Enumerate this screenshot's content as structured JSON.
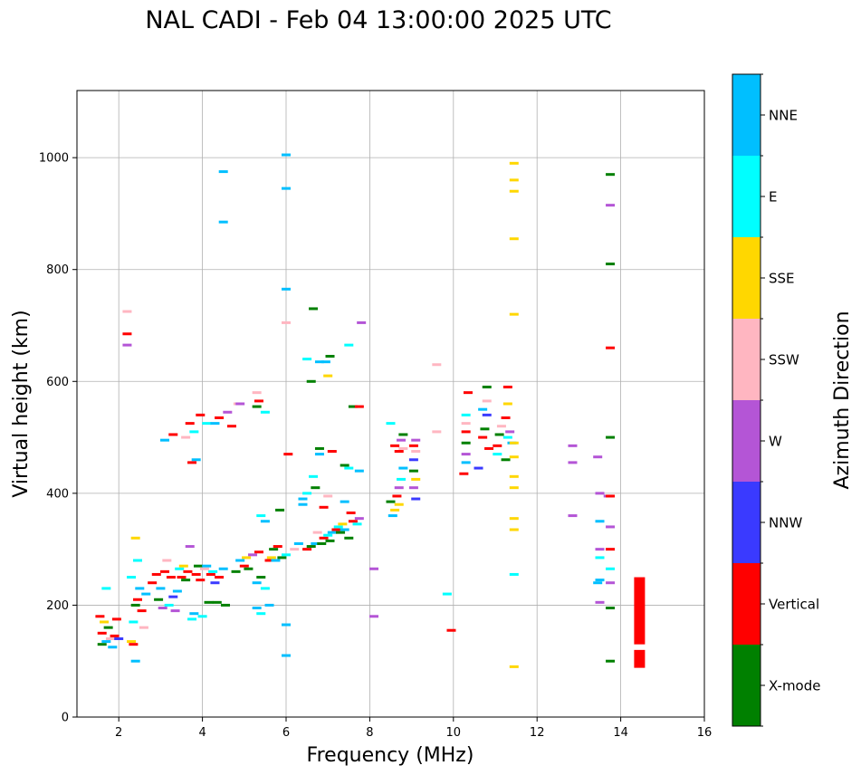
{
  "chart_data": {
    "type": "scatter",
    "title": "NAL CADI - Feb 04 13:00:00 2025 UTC",
    "xlabel": "Frequency (MHz)",
    "ylabel": "Virtual height (km)",
    "xlim": [
      1,
      16
    ],
    "ylim": [
      0,
      1120
    ],
    "xticks": [
      2,
      4,
      6,
      8,
      10,
      12,
      14,
      16
    ],
    "yticks": [
      0,
      200,
      400,
      600,
      800,
      1000
    ],
    "grid": true,
    "colorbar": {
      "title": "Azimuth Direction",
      "categories": [
        {
          "label": "X-mode",
          "color": "#008000"
        },
        {
          "label": "Vertical",
          "color": "#ff0000"
        },
        {
          "label": "NNW",
          "color": "#3a3aff"
        },
        {
          "label": "W",
          "color": "#b455d6"
        },
        {
          "label": "SSW",
          "color": "#ffb6c1"
        },
        {
          "label": "SSE",
          "color": "#ffd700"
        },
        {
          "label": "E",
          "color": "#00ffff"
        },
        {
          "label": "NNE",
          "color": "#00bfff"
        }
      ]
    },
    "points": [
      [
        "X-mode",
        1.6,
        130
      ],
      [
        "Vertical",
        1.6,
        150
      ],
      [
        "SSE",
        1.65,
        170
      ],
      [
        "NNE",
        1.7,
        135
      ],
      [
        "X-mode",
        1.75,
        160
      ],
      [
        "Vertical",
        1.55,
        180
      ],
      [
        "SSW",
        1.8,
        140
      ],
      [
        "NNE",
        1.85,
        125
      ],
      [
        "Vertical",
        1.9,
        145
      ],
      [
        "E",
        1.7,
        230
      ],
      [
        "Vertical",
        1.95,
        175
      ],
      [
        "NNW",
        2.0,
        140
      ],
      [
        "SSE",
        2.3,
        135
      ],
      [
        "Vertical",
        2.35,
        130
      ],
      [
        "NNE",
        2.4,
        100
      ],
      [
        "E",
        2.35,
        170
      ],
      [
        "X-mode",
        2.4,
        200
      ],
      [
        "Vertical",
        2.45,
        210
      ],
      [
        "NNE",
        2.5,
        230
      ],
      [
        "E",
        2.3,
        250
      ],
      [
        "SSE",
        2.4,
        320
      ],
      [
        "E",
        2.45,
        280
      ],
      [
        "Vertical",
        2.55,
        190
      ],
      [
        "SSW",
        2.6,
        160
      ],
      [
        "NNE",
        2.65,
        220
      ],
      [
        "Vertical",
        2.2,
        685
      ],
      [
        "W",
        2.2,
        665
      ],
      [
        "SSW",
        2.2,
        725
      ],
      [
        "Vertical",
        2.8,
        240
      ],
      [
        "Vertical",
        2.9,
        255
      ],
      [
        "X-mode",
        2.95,
        210
      ],
      [
        "NNE",
        3.0,
        230
      ],
      [
        "W",
        3.05,
        195
      ],
      [
        "Vertical",
        3.1,
        260
      ],
      [
        "SSW",
        3.15,
        280
      ],
      [
        "E",
        3.2,
        200
      ],
      [
        "Vertical",
        3.25,
        250
      ],
      [
        "NNW",
        3.3,
        215
      ],
      [
        "W",
        3.35,
        190
      ],
      [
        "NNE",
        3.4,
        225
      ],
      [
        "E",
        3.45,
        265
      ],
      [
        "Vertical",
        3.5,
        250
      ],
      [
        "SSE",
        3.55,
        270
      ],
      [
        "X-mode",
        3.6,
        245
      ],
      [
        "Vertical",
        3.65,
        260
      ],
      [
        "W",
        3.7,
        305
      ],
      [
        "E",
        3.75,
        175
      ],
      [
        "NNE",
        3.8,
        185
      ],
      [
        "Vertical",
        3.85,
        255
      ],
      [
        "X-mode",
        3.9,
        270
      ],
      [
        "Vertical",
        3.95,
        245
      ],
      [
        "E",
        4.0,
        180
      ],
      [
        "SSW",
        4.05,
        265
      ],
      [
        "NNE",
        4.1,
        270
      ],
      [
        "X-mode",
        4.15,
        205
      ],
      [
        "Vertical",
        4.2,
        255
      ],
      [
        "E",
        4.25,
        260
      ],
      [
        "NNW",
        4.3,
        240
      ],
      [
        "X-mode",
        4.35,
        205
      ],
      [
        "Vertical",
        4.4,
        250
      ],
      [
        "NNE",
        4.5,
        265
      ],
      [
        "X-mode",
        4.55,
        200
      ],
      [
        "NNE",
        3.1,
        495
      ],
      [
        "Vertical",
        3.3,
        505
      ],
      [
        "Vertical",
        3.7,
        525
      ],
      [
        "E",
        3.8,
        510
      ],
      [
        "SSW",
        3.6,
        500
      ],
      [
        "Vertical",
        3.95,
        540
      ],
      [
        "E",
        4.1,
        525
      ],
      [
        "NNE",
        4.3,
        525
      ],
      [
        "Vertical",
        4.4,
        535
      ],
      [
        "W",
        4.6,
        545
      ],
      [
        "Vertical",
        4.7,
        520
      ],
      [
        "SSW",
        4.85,
        560
      ],
      [
        "X-mode",
        5.3,
        555
      ],
      [
        "Vertical",
        5.35,
        565
      ],
      [
        "E",
        5.5,
        545
      ],
      [
        "SSW",
        5.3,
        580
      ],
      [
        "W",
        4.9,
        560
      ],
      [
        "NNE",
        3.85,
        460
      ],
      [
        "Vertical",
        3.75,
        455
      ],
      [
        "X-mode",
        4.8,
        260
      ],
      [
        "NNE",
        4.9,
        280
      ],
      [
        "Vertical",
        5.0,
        270
      ],
      [
        "SSE",
        5.05,
        285
      ],
      [
        "X-mode",
        5.1,
        265
      ],
      [
        "W",
        5.2,
        290
      ],
      [
        "NNE",
        5.3,
        240
      ],
      [
        "Vertical",
        5.35,
        295
      ],
      [
        "X-mode",
        5.4,
        250
      ],
      [
        "E",
        5.5,
        230
      ],
      [
        "Vertical",
        5.6,
        280
      ],
      [
        "SSE",
        5.65,
        285
      ],
      [
        "X-mode",
        5.7,
        300
      ],
      [
        "NNE",
        5.75,
        280
      ],
      [
        "Vertical",
        5.8,
        305
      ],
      [
        "X-mode",
        5.9,
        285
      ],
      [
        "E",
        6.0,
        290
      ],
      [
        "NNE",
        5.3,
        195
      ],
      [
        "E",
        5.4,
        185
      ],
      [
        "NNE",
        5.6,
        200
      ],
      [
        "E",
        5.4,
        360
      ],
      [
        "NNE",
        5.5,
        350
      ],
      [
        "X-mode",
        5.85,
        370
      ],
      [
        "SSW",
        6.2,
        300
      ],
      [
        "NNE",
        6.3,
        310
      ],
      [
        "Vertical",
        6.5,
        300
      ],
      [
        "X-mode",
        6.6,
        305
      ],
      [
        "NNE",
        6.7,
        310
      ],
      [
        "SSW",
        6.75,
        330
      ],
      [
        "X-mode",
        6.85,
        310
      ],
      [
        "Vertical",
        6.9,
        320
      ],
      [
        "E",
        7.0,
        325
      ],
      [
        "X-mode",
        7.05,
        315
      ],
      [
        "NNE",
        7.1,
        330
      ],
      [
        "Vertical",
        7.2,
        335
      ],
      [
        "E",
        7.25,
        340
      ],
      [
        "X-mode",
        7.3,
        330
      ],
      [
        "SSE",
        7.35,
        345
      ],
      [
        "NNE",
        7.4,
        335
      ],
      [
        "X-mode",
        7.5,
        320
      ],
      [
        "Vertical",
        7.6,
        350
      ],
      [
        "E",
        7.7,
        345
      ],
      [
        "W",
        7.75,
        355
      ],
      [
        "Vertical",
        7.55,
        365
      ],
      [
        "NNE",
        7.4,
        385
      ],
      [
        "Vertical",
        6.9,
        375
      ],
      [
        "SSW",
        7.0,
        395
      ],
      [
        "NNE",
        6.4,
        390
      ],
      [
        "E",
        6.5,
        400
      ],
      [
        "NNE",
        6.4,
        380
      ],
      [
        "X-mode",
        6.7,
        410
      ],
      [
        "E",
        6.65,
        430
      ],
      [
        "NNE",
        6.8,
        470
      ],
      [
        "X-mode",
        6.8,
        480
      ],
      [
        "Vertical",
        7.1,
        475
      ],
      [
        "X-mode",
        7.4,
        450
      ],
      [
        "E",
        7.5,
        445
      ],
      [
        "NNE",
        7.75,
        440
      ],
      [
        "X-mode",
        7.6,
        555
      ],
      [
        "Vertical",
        7.75,
        555
      ],
      [
        "Vertical",
        6.05,
        470
      ],
      [
        "NNE",
        6.0,
        1005
      ],
      [
        "NNE",
        6.0,
        945
      ],
      [
        "SSW",
        6.0,
        705
      ],
      [
        "NNE",
        6.0,
        765
      ],
      [
        "NNE",
        6.0,
        165
      ],
      [
        "NNE",
        6.0,
        110
      ],
      [
        "X-mode",
        6.6,
        600
      ],
      [
        "X-mode",
        6.65,
        730
      ],
      [
        "E",
        6.5,
        640
      ],
      [
        "NNE",
        6.8,
        635
      ],
      [
        "X-mode",
        7.05,
        645
      ],
      [
        "NNE",
        6.95,
        635
      ],
      [
        "SSE",
        7.0,
        610
      ],
      [
        "E",
        7.5,
        665
      ],
      [
        "W",
        7.8,
        705
      ],
      [
        "NNE",
        4.5,
        885
      ],
      [
        "NNE",
        4.5,
        975
      ],
      [
        "X-mode",
        8.5,
        385
      ],
      [
        "NNE",
        8.55,
        360
      ],
      [
        "SSE",
        8.6,
        370
      ],
      [
        "Vertical",
        8.65,
        395
      ],
      [
        "W",
        8.7,
        410
      ],
      [
        "E",
        8.75,
        425
      ],
      [
        "NNE",
        8.8,
        445
      ],
      [
        "Vertical",
        8.7,
        475
      ],
      [
        "W",
        8.75,
        495
      ],
      [
        "SSW",
        8.8,
        480
      ],
      [
        "Vertical",
        8.6,
        485
      ],
      [
        "X-mode",
        8.8,
        505
      ],
      [
        "SSE",
        8.7,
        380
      ],
      [
        "E",
        8.5,
        525
      ],
      [
        "Vertical",
        9.05,
        485
      ],
      [
        "W",
        9.1,
        495
      ],
      [
        "NNW",
        9.05,
        460
      ],
      [
        "SSE",
        9.1,
        425
      ],
      [
        "W",
        9.05,
        410
      ],
      [
        "NNW",
        9.1,
        390
      ],
      [
        "SSW",
        9.1,
        475
      ],
      [
        "X-mode",
        9.05,
        440
      ],
      [
        "W",
        8.1,
        265
      ],
      [
        "W",
        8.1,
        180
      ],
      [
        "SSW",
        9.6,
        510
      ],
      [
        "SSW",
        9.6,
        630
      ],
      [
        "E",
        9.85,
        220
      ],
      [
        "Vertical",
        9.95,
        155
      ],
      [
        "Vertical",
        10.25,
        435
      ],
      [
        "NNE",
        10.3,
        455
      ],
      [
        "W",
        10.3,
        470
      ],
      [
        "X-mode",
        10.3,
        490
      ],
      [
        "Vertical",
        10.3,
        510
      ],
      [
        "SSW",
        10.3,
        525
      ],
      [
        "E",
        10.3,
        540
      ],
      [
        "Vertical",
        10.35,
        580
      ],
      [
        "NNW",
        10.6,
        445
      ],
      [
        "Vertical",
        10.7,
        500
      ],
      [
        "X-mode",
        10.75,
        515
      ],
      [
        "NNE",
        10.7,
        550
      ],
      [
        "SSW",
        10.8,
        565
      ],
      [
        "X-mode",
        10.8,
        590
      ],
      [
        "Vertical",
        10.85,
        480
      ],
      [
        "NNW",
        10.8,
        540
      ],
      [
        "E",
        11.05,
        470
      ],
      [
        "Vertical",
        11.05,
        485
      ],
      [
        "X-mode",
        11.1,
        505
      ],
      [
        "SSW",
        11.15,
        520
      ],
      [
        "Vertical",
        11.25,
        535
      ],
      [
        "SSE",
        11.3,
        560
      ],
      [
        "Vertical",
        11.3,
        590
      ],
      [
        "W",
        11.35,
        510
      ],
      [
        "NNE",
        11.4,
        490
      ],
      [
        "E",
        11.3,
        500
      ],
      [
        "X-mode",
        11.25,
        460
      ],
      [
        "SSE",
        11.45,
        990
      ],
      [
        "SSE",
        11.45,
        960
      ],
      [
        "SSE",
        11.45,
        940
      ],
      [
        "SSE",
        11.45,
        855
      ],
      [
        "SSE",
        11.45,
        720
      ],
      [
        "SSE",
        11.45,
        490
      ],
      [
        "SSE",
        11.45,
        465
      ],
      [
        "SSE",
        11.45,
        430
      ],
      [
        "SSE",
        11.45,
        410
      ],
      [
        "SSE",
        11.45,
        355
      ],
      [
        "SSE",
        11.45,
        335
      ],
      [
        "E",
        11.45,
        255
      ],
      [
        "SSE",
        11.45,
        90
      ],
      [
        "W",
        12.85,
        485
      ],
      [
        "W",
        12.85,
        455
      ],
      [
        "W",
        12.85,
        360
      ],
      [
        "W",
        13.45,
        465
      ],
      [
        "W",
        13.5,
        400
      ],
      [
        "NNE",
        13.5,
        350
      ],
      [
        "W",
        13.5,
        300
      ],
      [
        "E",
        13.5,
        285
      ],
      [
        "NNE",
        13.5,
        245
      ],
      [
        "NNE",
        13.45,
        240
      ],
      [
        "W",
        13.5,
        205
      ],
      [
        "W",
        13.7,
        395
      ],
      [
        "Vertical",
        13.75,
        395
      ],
      [
        "W",
        13.75,
        340
      ],
      [
        "Vertical",
        13.75,
        300
      ],
      [
        "E",
        13.75,
        265
      ],
      [
        "W",
        13.75,
        240
      ],
      [
        "X-mode",
        13.75,
        195
      ],
      [
        "X-mode",
        13.75,
        100
      ],
      [
        "X-mode",
        13.75,
        970
      ],
      [
        "W",
        13.75,
        915
      ],
      [
        "X-mode",
        13.75,
        810
      ],
      [
        "Vertical",
        13.75,
        660
      ],
      [
        "X-mode",
        13.75,
        500
      ]
    ],
    "bars": [
      {
        "category": "Vertical",
        "x": 14.45,
        "y_from": 130,
        "y_to": 250
      },
      {
        "category": "Vertical",
        "x": 14.45,
        "y_from": 88,
        "y_to": 120
      }
    ]
  }
}
